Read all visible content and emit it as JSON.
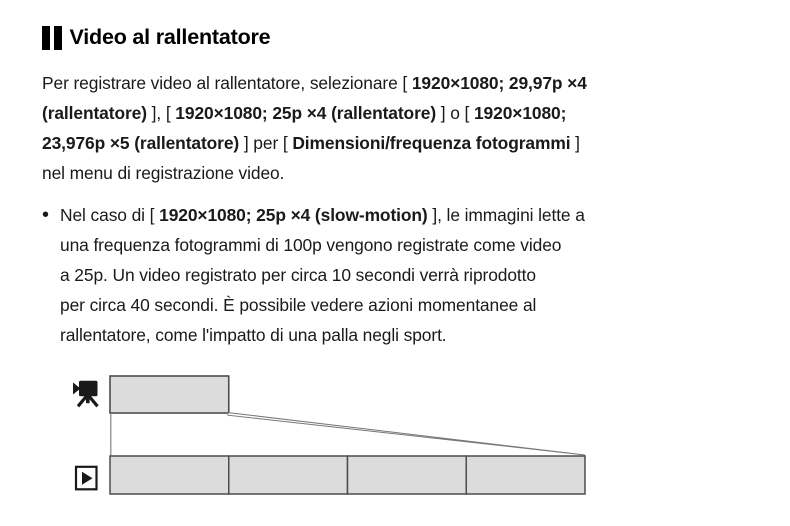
{
  "heading": {
    "title": "Video al rallentatore",
    "marker_icon": "double-bar-section-marker"
  },
  "paragraph": {
    "lines": [
      [
        {
          "t": "Per registrare video al rallentatore, selezionare [ ",
          "b": false
        },
        {
          "t": "1920×1080; 29,97p ×4",
          "b": true
        }
      ],
      [
        {
          "t": "(rallentatore)",
          "b": true
        },
        {
          "t": " ], [ ",
          "b": false
        },
        {
          "t": "1920×1080; 25p ×4 (rallentatore)",
          "b": true
        },
        {
          "t": " ] o [ ",
          "b": false
        },
        {
          "t": "1920×1080;",
          "b": true
        }
      ],
      [
        {
          "t": "23,976p ×5 (rallentatore)",
          "b": true
        },
        {
          "t": " ] per [ ",
          "b": false
        },
        {
          "t": "Dimensioni/frequenza fotogrammi",
          "b": true
        },
        {
          "t": " ]",
          "b": false
        }
      ],
      [
        {
          "t": "nel menu di registrazione video.",
          "b": false
        }
      ]
    ]
  },
  "bullet": {
    "marker": "•",
    "lines": [
      [
        {
          "t": "Nel caso di [ ",
          "b": false
        },
        {
          "t": "1920×1080; 25p ×4 (slow-motion)",
          "b": true
        },
        {
          "t": " ], le immagini lette a",
          "b": false
        }
      ],
      [
        {
          "t": "una frequenza fotogrammi di 100p vengono registrate come video",
          "b": false
        }
      ],
      [
        {
          "t": "a 25p. Un video registrato per circa 10 secondi verrà riprodotto",
          "b": false
        }
      ],
      [
        {
          "t": "per circa 40 secondi. È possibile vedere azioni momentanee al",
          "b": false
        }
      ],
      [
        {
          "t": "rallentatore, come l'impatto di una palla negli sport.",
          "b": false
        }
      ]
    ]
  },
  "diagram": {
    "record_icon": "movie-camera",
    "playback_icon": "play-button",
    "record_segments": 1,
    "playback_segments": 4,
    "segment_fill": "#dcdcdc",
    "segment_border": "#4d4d4d",
    "connector_color": "#777777",
    "icon_color": "#1a1a1a"
  }
}
